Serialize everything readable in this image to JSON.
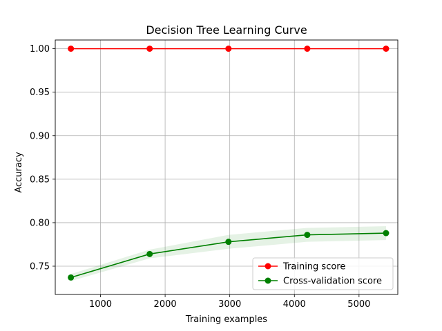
{
  "chart_data": {
    "type": "line",
    "title": "Decision Tree Learning Curve",
    "xlabel": "Training examples",
    "ylabel": "Accuracy",
    "xlim": [
      300,
      5600
    ],
    "ylim": [
      0.7175,
      1.01
    ],
    "xticks": [
      1000,
      2000,
      3000,
      4000,
      5000
    ],
    "xtick_labels": [
      "1000",
      "2000",
      "3000",
      "4000",
      "5000"
    ],
    "yticks": [
      0.75,
      0.8,
      0.85,
      0.9,
      0.95,
      1.0
    ],
    "ytick_labels": [
      "0.75",
      "0.80",
      "0.85",
      "0.90",
      "0.95",
      "1.00"
    ],
    "grid": true,
    "legend_position": "lower-right",
    "x": [
      542,
      1761,
      2980,
      4199,
      5418
    ],
    "series": [
      {
        "name": "Training score",
        "color": "#ff0000",
        "values": [
          1.0,
          1.0,
          1.0,
          1.0,
          1.0
        ],
        "std": [
          0.0,
          0.0,
          0.0,
          0.0,
          0.0
        ]
      },
      {
        "name": "Cross-validation score",
        "color": "#008000",
        "values": [
          0.737,
          0.764,
          0.778,
          0.786,
          0.788
        ],
        "std": [
          0.004,
          0.005,
          0.008,
          0.008,
          0.008
        ]
      }
    ]
  }
}
